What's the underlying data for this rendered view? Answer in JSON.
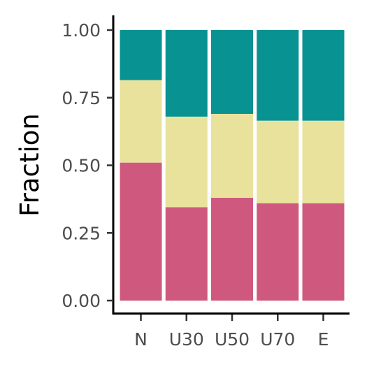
{
  "chart_data": {
    "type": "bar",
    "stacked": true,
    "categories": [
      "N",
      "U30",
      "U50",
      "U70",
      "E"
    ],
    "series": [
      {
        "color": "#CF597E",
        "values": [
          0.51,
          0.345,
          0.38,
          0.36,
          0.36
        ]
      },
      {
        "color": "#E9E29C",
        "values": [
          0.305,
          0.335,
          0.31,
          0.305,
          0.305
        ]
      },
      {
        "color": "#089392",
        "values": [
          0.185,
          0.32,
          0.31,
          0.335,
          0.335
        ]
      }
    ],
    "ylabel": "Fraction",
    "xlabel": "",
    "ylim": [
      0,
      1
    ],
    "yticks": [
      "0.00",
      "0.25",
      "0.50",
      "0.75",
      "1.00"
    ],
    "ytick_values": [
      0,
      0.25,
      0.5,
      0.75,
      1
    ],
    "grid": false,
    "legend": "none"
  }
}
